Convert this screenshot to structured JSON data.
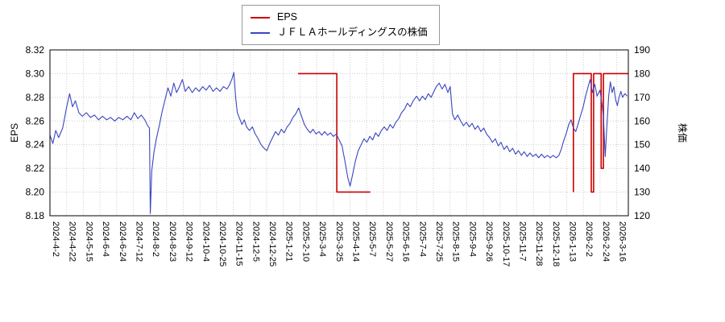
{
  "legend": {
    "items": [
      {
        "label": "EPS",
        "color": "#cc0000"
      },
      {
        "label": "ＪＦＬＡホールディングスの株価",
        "color": "#3a46c0"
      }
    ]
  },
  "chart_data": {
    "type": "line",
    "title": "",
    "grid": true,
    "legend_position": "top-center",
    "x_units": "percent-of-plot-width",
    "x_tick_labels": [
      "2024-4-2",
      "2024-4-22",
      "2024-5-15",
      "2024-6-4",
      "2024-6-24",
      "2024-7-12",
      "2024-8-2",
      "2024-8-23",
      "2024-9-12",
      "2024-10-4",
      "2024-10-25",
      "2024-11-15",
      "2024-12-5",
      "2024-12-25",
      "2025-1-21",
      "2025-2-10",
      "2025-3-4",
      "2025-3-25",
      "2025-4-14",
      "2025-5-7",
      "2025-5-27",
      "2025-6-16",
      "2025-7-4",
      "2025-7-25",
      "2025-8-15",
      "2025-9-4",
      "2025-9-26",
      "2025-10-17",
      "2025-11-7",
      "2025-11-28",
      "2025-12-18",
      "2026-1-13",
      "2026-2-2",
      "2026-2-24",
      "2026-3-16"
    ],
    "left_axis": {
      "label": "EPS",
      "min": 8.18,
      "max": 8.32,
      "tick_labels": [
        "8.18",
        "8.20",
        "8.22",
        "8.24",
        "8.26",
        "8.28",
        "8.30",
        "8.32"
      ]
    },
    "right_axis": {
      "label": "株価",
      "min": 120,
      "max": 190,
      "tick_labels": [
        "120",
        "130",
        "140",
        "150",
        "160",
        "170",
        "180",
        "190"
      ]
    },
    "series": [
      {
        "name": "EPS",
        "axis": "left",
        "color": "#cc0000",
        "width": 1.6,
        "segments": [
          [
            [
              42.9,
              8.3
            ],
            [
              49.6,
              8.3
            ],
            [
              49.6,
              8.2
            ],
            [
              55.4,
              8.2
            ]
          ],
          [
            [
              90.5,
              8.2
            ],
            [
              90.5,
              8.3
            ],
            [
              93.6,
              8.3
            ],
            [
              93.6,
              8.2
            ],
            [
              94.0,
              8.2
            ],
            [
              94.0,
              8.3
            ],
            [
              95.3,
              8.3
            ],
            [
              95.3,
              8.22
            ],
            [
              95.7,
              8.22
            ],
            [
              95.7,
              8.3
            ],
            [
              100,
              8.3
            ]
          ]
        ]
      },
      {
        "name": "ＪＦＬＡホールディングスの株価",
        "axis": "right",
        "color": "#3a46c0",
        "width": 1.1,
        "segments": [
          [
            [
              0,
              154
            ],
            [
              0.5,
              150.5
            ],
            [
              1,
              156
            ],
            [
              1.5,
              153
            ],
            [
              2.2,
              157
            ],
            [
              2.9,
              166
            ],
            [
              3.4,
              171.5
            ],
            [
              3.9,
              166
            ],
            [
              4.4,
              168.5
            ],
            [
              5,
              163.5
            ],
            [
              5.6,
              162
            ],
            [
              6.3,
              163.5
            ],
            [
              7,
              161.5
            ],
            [
              7.7,
              162.5
            ],
            [
              8.4,
              160.5
            ],
            [
              9.1,
              162
            ],
            [
              9.8,
              160.5
            ],
            [
              10.5,
              161.5
            ],
            [
              11.2,
              160
            ],
            [
              11.9,
              161.5
            ],
            [
              12.6,
              160.5
            ],
            [
              13.3,
              162
            ],
            [
              14,
              160.5
            ],
            [
              14.6,
              163.5
            ],
            [
              15.2,
              161
            ],
            [
              15.8,
              162.5
            ],
            [
              16.4,
              160.5
            ],
            [
              16.9,
              158
            ],
            [
              17.2,
              157
            ],
            [
              17.35,
              121
            ],
            [
              17.6,
              139
            ],
            [
              18,
              147
            ],
            [
              18.4,
              152.5
            ],
            [
              18.9,
              158
            ],
            [
              19.4,
              164
            ],
            [
              19.9,
              169
            ],
            [
              20.4,
              174
            ],
            [
              20.9,
              170.5
            ],
            [
              21.4,
              176
            ],
            [
              21.9,
              172
            ],
            [
              22.4,
              174.5
            ],
            [
              22.9,
              177.5
            ],
            [
              23.4,
              172.5
            ],
            [
              24,
              174.5
            ],
            [
              24.6,
              172
            ],
            [
              25.2,
              174
            ],
            [
              25.8,
              172.5
            ],
            [
              26.4,
              174.5
            ],
            [
              27,
              173
            ],
            [
              27.6,
              175
            ],
            [
              28.2,
              172.5
            ],
            [
              28.8,
              174
            ],
            [
              29.4,
              172.5
            ],
            [
              30,
              174.5
            ],
            [
              30.6,
              173.5
            ],
            [
              31.1,
              175.5
            ],
            [
              31.5,
              178
            ],
            [
              31.8,
              180.5
            ],
            [
              32.1,
              170
            ],
            [
              32.4,
              163.5
            ],
            [
              32.8,
              161
            ],
            [
              33.2,
              158.5
            ],
            [
              33.6,
              160.5
            ],
            [
              34,
              157.5
            ],
            [
              34.5,
              156
            ],
            [
              35,
              157.5
            ],
            [
              35.5,
              154.5
            ],
            [
              36,
              152.5
            ],
            [
              36.5,
              150
            ],
            [
              37,
              148.5
            ],
            [
              37.5,
              147.5
            ],
            [
              38,
              150.5
            ],
            [
              38.5,
              153
            ],
            [
              39,
              155.5
            ],
            [
              39.5,
              154
            ],
            [
              40,
              156.5
            ],
            [
              40.5,
              155
            ],
            [
              41,
              157.5
            ],
            [
              41.5,
              159
            ],
            [
              42,
              161.5
            ],
            [
              42.5,
              163
            ],
            [
              43,
              165.5
            ],
            [
              43.5,
              162
            ],
            [
              44,
              158.5
            ],
            [
              44.5,
              156.5
            ],
            [
              45,
              155
            ],
            [
              45.5,
              156.5
            ],
            [
              46,
              154.5
            ],
            [
              46.5,
              155.5
            ],
            [
              47,
              154
            ],
            [
              47.5,
              155.5
            ],
            [
              48,
              154
            ],
            [
              48.5,
              155
            ],
            [
              49,
              153.5
            ],
            [
              49.5,
              154.5
            ],
            [
              50,
              152
            ],
            [
              50.5,
              149.5
            ],
            [
              51,
              143
            ],
            [
              51.5,
              136
            ],
            [
              51.9,
              132.5
            ],
            [
              52.3,
              137
            ],
            [
              52.8,
              143
            ],
            [
              53.3,
              147.5
            ],
            [
              53.8,
              150
            ],
            [
              54.3,
              152.5
            ],
            [
              54.8,
              151
            ],
            [
              55.3,
              153.5
            ],
            [
              55.8,
              152
            ],
            [
              56.3,
              155
            ],
            [
              56.8,
              153.5
            ],
            [
              57.3,
              156
            ],
            [
              57.8,
              157.5
            ],
            [
              58.3,
              156
            ],
            [
              58.8,
              158.5
            ],
            [
              59.3,
              157
            ],
            [
              59.8,
              159.5
            ],
            [
              60.3,
              161
            ],
            [
              60.8,
              163.5
            ],
            [
              61.3,
              165
            ],
            [
              61.8,
              167.5
            ],
            [
              62.3,
              166
            ],
            [
              62.8,
              168.5
            ],
            [
              63.4,
              170.5
            ],
            [
              63.9,
              168.5
            ],
            [
              64.4,
              170.5
            ],
            [
              64.9,
              169
            ],
            [
              65.4,
              171.5
            ],
            [
              65.9,
              170
            ],
            [
              66.3,
              172
            ],
            [
              66.8,
              174.5
            ],
            [
              67.3,
              176
            ],
            [
              67.8,
              173.5
            ],
            [
              68.3,
              175.5
            ],
            [
              68.8,
              172
            ],
            [
              69.2,
              174.5
            ],
            [
              69.6,
              163
            ],
            [
              70,
              160.5
            ],
            [
              70.5,
              162.5
            ],
            [
              71,
              160
            ],
            [
              71.5,
              158
            ],
            [
              72,
              159.5
            ],
            [
              72.5,
              157.5
            ],
            [
              73,
              159
            ],
            [
              73.5,
              156.5
            ],
            [
              74,
              158
            ],
            [
              74.5,
              155.5
            ],
            [
              75,
              157
            ],
            [
              75.5,
              154.5
            ],
            [
              76,
              153
            ],
            [
              76.5,
              151
            ],
            [
              77,
              152.5
            ],
            [
              77.5,
              149.5
            ],
            [
              78,
              151
            ],
            [
              78.5,
              148
            ],
            [
              79,
              149.5
            ],
            [
              79.5,
              147
            ],
            [
              80,
              148.5
            ],
            [
              80.5,
              146
            ],
            [
              81,
              147.5
            ],
            [
              81.5,
              145.5
            ],
            [
              82,
              147
            ],
            [
              82.5,
              145
            ],
            [
              83,
              146.5
            ],
            [
              83.5,
              145
            ],
            [
              84,
              146
            ],
            [
              84.5,
              144.5
            ],
            [
              85,
              146
            ],
            [
              85.5,
              144.5
            ],
            [
              86,
              145.5
            ],
            [
              86.5,
              144.5
            ],
            [
              87,
              145.5
            ],
            [
              87.5,
              144.5
            ],
            [
              88,
              145.5
            ],
            [
              88.4,
              148
            ],
            [
              88.8,
              151.5
            ],
            [
              89.3,
              155
            ],
            [
              89.7,
              158.5
            ],
            [
              90.1,
              160.5
            ],
            [
              90.5,
              157
            ],
            [
              90.9,
              155.5
            ],
            [
              91.3,
              158.5
            ],
            [
              91.7,
              162
            ],
            [
              92.2,
              166
            ],
            [
              92.6,
              170.5
            ],
            [
              93,
              174
            ],
            [
              93.4,
              177.5
            ],
            [
              93.8,
              172
            ],
            [
              94.2,
              175.5
            ],
            [
              94.6,
              170.5
            ],
            [
              95.1,
              173
            ],
            [
              95.4,
              168
            ],
            [
              95.7,
              162
            ],
            [
              96,
              145
            ],
            [
              96.3,
              158
            ],
            [
              96.6,
              170.5
            ],
            [
              96.9,
              176.5
            ],
            [
              97.2,
              172
            ],
            [
              97.5,
              174.5
            ],
            [
              97.8,
              169
            ],
            [
              98.1,
              166.5
            ],
            [
              98.4,
              170
            ],
            [
              98.7,
              172.5
            ],
            [
              99,
              170
            ],
            [
              99.4,
              171.5
            ],
            [
              99.8,
              170.5
            ]
          ]
        ]
      }
    ]
  }
}
